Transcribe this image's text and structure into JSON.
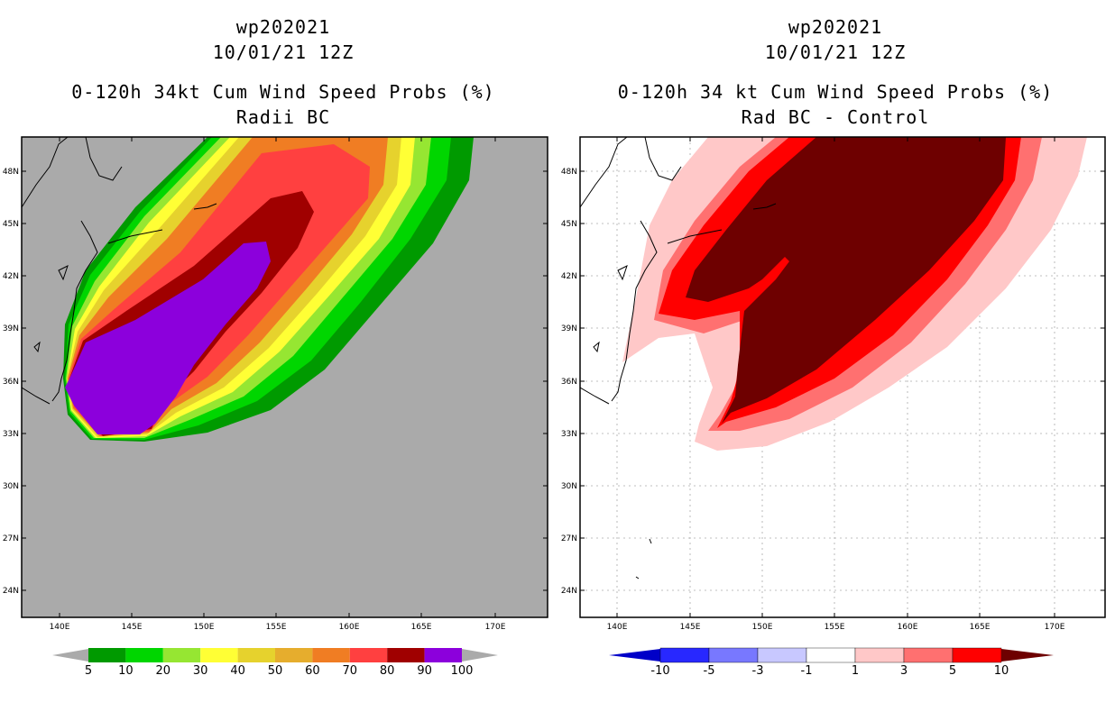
{
  "left": {
    "title1": "wp202021",
    "title2": "10/01/21 12Z",
    "title3": "0-120h 34kt Cum Wind Speed Probs (%)",
    "title4": "Radii BC",
    "colorbar": {
      "labels": [
        "5",
        "10",
        "20",
        "30",
        "40",
        "50",
        "60",
        "70",
        "80",
        "90",
        "100"
      ],
      "colors": [
        "#009a00",
        "#00d600",
        "#96e632",
        "#ffff35",
        "#e6d22d",
        "#e6ad2d",
        "#f07d23",
        "#ff4040",
        "#a00000",
        "#8c00dc"
      ]
    }
  },
  "right": {
    "title1": "wp202021",
    "title2": "10/01/21 12Z",
    "title3": "0-120h 34 kt Cum Wind Speed Probs (%)",
    "title4": "Rad BC - Control",
    "colorbar": {
      "labels": [
        "-10",
        "-5",
        "-3",
        "-1",
        "1",
        "3",
        "5",
        "10"
      ],
      "colors": [
        "#0000c8",
        "#2828ff",
        "#7878ff",
        "#c8c8ff",
        "#ffffff",
        "#ffc8c8",
        "#ff7070",
        "#ff0000",
        "#6e0000"
      ]
    }
  },
  "axes": {
    "lat_labels": [
      "48N",
      "45N",
      "42N",
      "39N",
      "36N",
      "33N",
      "30N",
      "27N",
      "24N"
    ],
    "lon_labels": [
      "140E",
      "145E",
      "150E",
      "155E",
      "160E",
      "165E",
      "170E"
    ]
  },
  "colors": {
    "background_grey": "#aaaaaa",
    "purple": "#8c00dc",
    "darkred": "#6e0000"
  }
}
